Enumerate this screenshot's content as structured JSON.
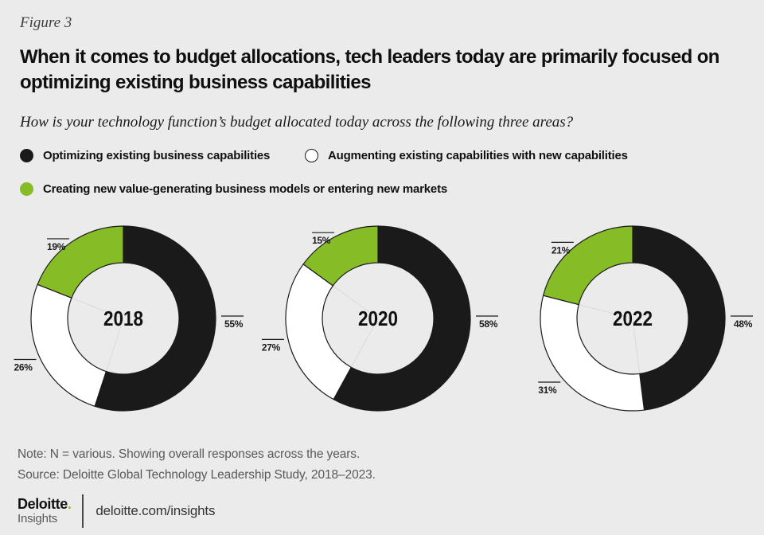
{
  "page": {
    "background": "#ebebeb"
  },
  "figure_label": "Figure 3",
  "title": "When it comes to budget allocations, tech leaders today are primarily focused on optimizing existing business capabilities",
  "question": "How is your technology function’s budget allocated today across the following three areas?",
  "legend": {
    "items": [
      {
        "label": "Optimizing existing business capabilities",
        "swatch": "solid-black"
      },
      {
        "label": "Augmenting existing capabilities with new capabilities",
        "swatch": "outline-white"
      },
      {
        "label": "Creating new value-generating business models or entering new markets",
        "swatch": "solid-green"
      }
    ]
  },
  "chart_data": {
    "type": "pie",
    "subtype": "donut",
    "unit": "%",
    "categories": [
      "Optimizing existing business capabilities",
      "Augmenting existing capabilities with new capabilities",
      "Creating new value-generating business models or entering new markets"
    ],
    "colors": [
      "#1a1a1a",
      "#ffffff",
      "#86bc25"
    ],
    "outline_color": "#1a1a1a",
    "donuts": [
      {
        "year": "2018",
        "values": [
          55,
          26,
          19
        ]
      },
      {
        "year": "2020",
        "values": [
          58,
          27,
          15
        ]
      },
      {
        "year": "2022",
        "values": [
          48,
          31,
          21
        ]
      }
    ],
    "legend_position": "top",
    "labels_shown": true
  },
  "note": "Note: N = various. Showing overall responses across the years.",
  "source": "Source: Deloitte Global Technology Leadership Study, 2018–2023.",
  "footer": {
    "brand": "Deloitte",
    "brand_dot": ".",
    "brand_sub": "Insights",
    "url": "deloitte.com/insights",
    "accent_green": "#86bc25"
  }
}
